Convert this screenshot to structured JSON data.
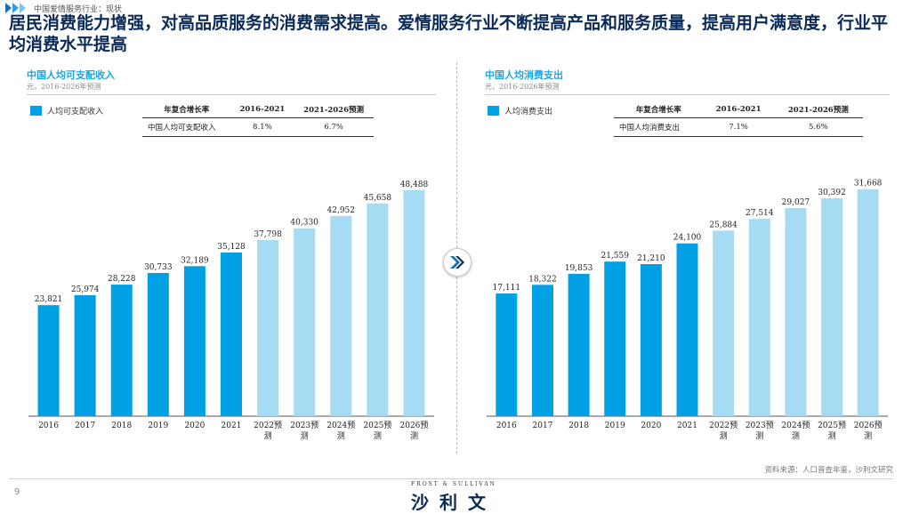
{
  "breadcrumb": "中国爱情服务行业：现状",
  "headline": "居民消费能力增强，对高品质服务的消费需求提高。爱情服务行业不断提高产品和服务质量，提高用户满意度，行业平均消费水平提高",
  "panels": [
    {
      "title": "中国人均可支配收入",
      "subtitle": "元，2016-2026年预测",
      "legend": "人均可支配收入",
      "cagr_headers": [
        "年复合增长率",
        "2016-2021",
        "2021-2026预测"
      ],
      "cagr_row": [
        "中国人均可支配收入",
        "8.1%",
        "6.7%"
      ]
    },
    {
      "title": "中国人均消费支出",
      "subtitle": "元，2016-2026年预测",
      "legend": "人均消费支出",
      "cagr_headers": [
        "年复合增长率",
        "2016-2021",
        "2021-2026预测"
      ],
      "cagr_row": [
        "中国人均消费支出",
        "7.1%",
        "5.6%"
      ]
    }
  ],
  "chart_data": [
    {
      "type": "bar",
      "title": "中国人均可支配收入",
      "subtitle": "元，2016-2026年预测",
      "categories": [
        "2016",
        "2017",
        "2018",
        "2019",
        "2020",
        "2021",
        "2022预测",
        "2023预测",
        "2024预测",
        "2025预测",
        "2026预测"
      ],
      "series": [
        {
          "name": "人均可支配收入",
          "values": [
            23821,
            25974,
            28228,
            30733,
            32189,
            35128,
            37798,
            40330,
            42952,
            45658,
            48488
          ]
        }
      ],
      "value_labels": [
        "23,821",
        "25,974",
        "28,228",
        "30,733",
        "32,189",
        "35,128",
        "37,798",
        "40,330",
        "42,952",
        "45,658",
        "48,488"
      ],
      "forecast_from_index": 6,
      "colors": {
        "actual": "#00a0e4",
        "forecast": "#a6dcf3"
      },
      "ylim": [
        0,
        50000
      ],
      "grid": false
    },
    {
      "type": "bar",
      "title": "中国人均消费支出",
      "subtitle": "元，2016-2026年预测",
      "categories": [
        "2016",
        "2017",
        "2018",
        "2019",
        "2020",
        "2021",
        "2022预测",
        "2023预测",
        "2024预测",
        "2025预测",
        "2026预测"
      ],
      "series": [
        {
          "name": "人均消费支出",
          "values": [
            17111,
            18322,
            19853,
            21559,
            21210,
            24100,
            25884,
            27514,
            29027,
            30392,
            31668
          ]
        }
      ],
      "value_labels": [
        "17,111",
        "18,322",
        "19,853",
        "21,559",
        "21,210",
        "24,100",
        "25,884",
        "27,514",
        "29,027",
        "30,392",
        "31,668"
      ],
      "forecast_from_index": 6,
      "colors": {
        "actual": "#00a0e4",
        "forecast": "#a6dcf3"
      },
      "ylim": [
        0,
        32500
      ],
      "grid": false
    }
  ],
  "source_note": "资料来源：人口普查年鉴，沙利文研究",
  "page_number": "9",
  "brand": {
    "en": "FROST & SULLIVAN",
    "cn": "沙利文"
  },
  "icons": {
    "breadcrumb": "chevrons-icon",
    "transition": "double-chevron-right-icon"
  }
}
